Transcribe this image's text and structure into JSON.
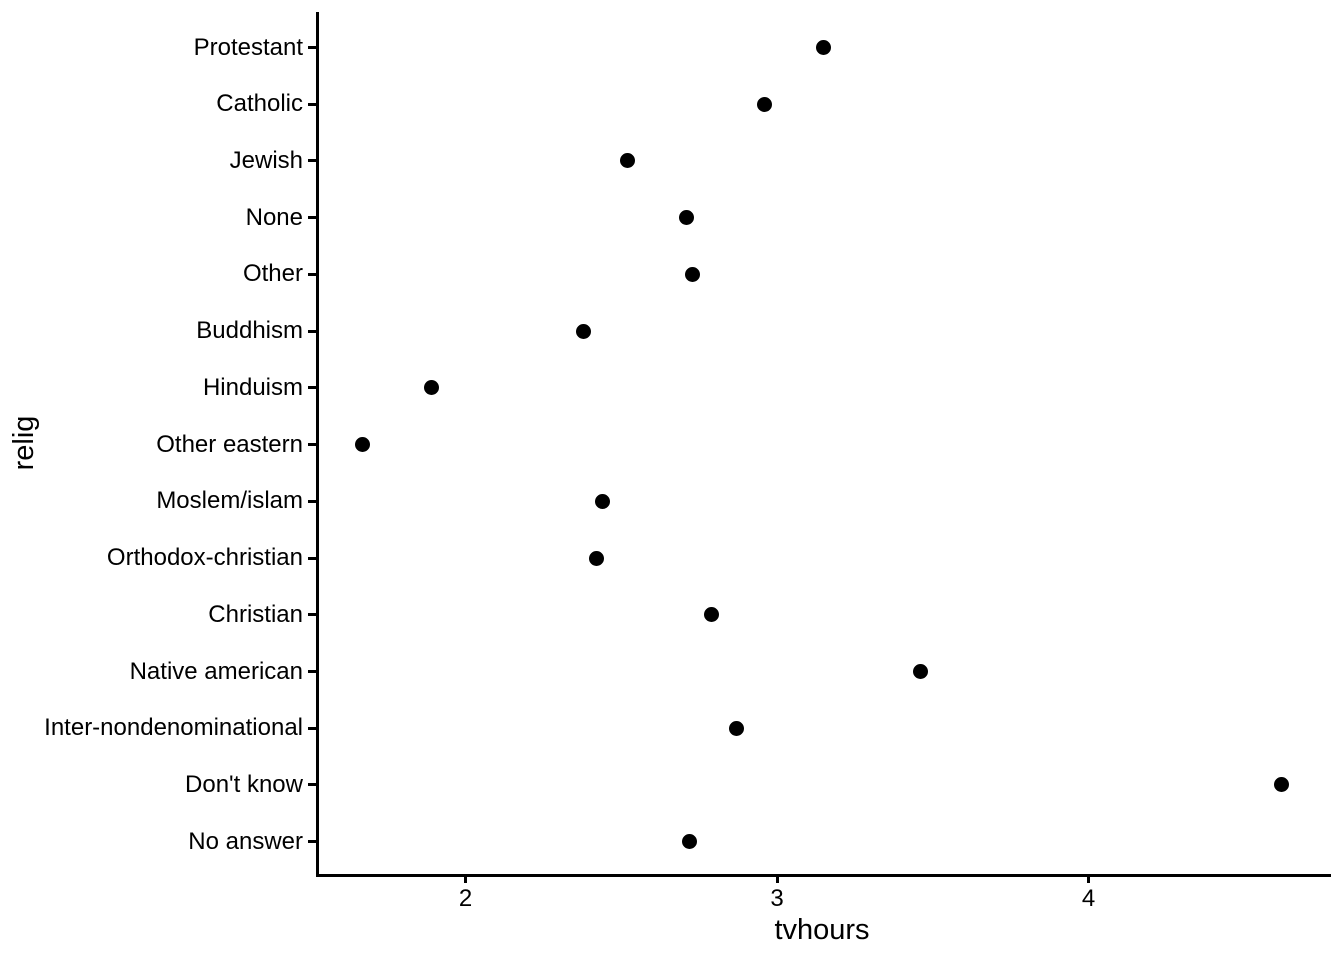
{
  "chart_data": {
    "type": "scatter",
    "variant": "cleveland-dot-plot",
    "orientation": "horizontal",
    "title": "",
    "xlabel": "tvhours",
    "ylabel": "relig",
    "categories": [
      "Protestant",
      "Catholic",
      "Jewish",
      "None",
      "Other",
      "Buddhism",
      "Hinduism",
      "Other eastern",
      "Moslem/islam",
      "Orthodox-christian",
      "Christian",
      "Native american",
      "Inter-nondenominational",
      "Don't know",
      "No answer"
    ],
    "values": [
      3.15,
      2.96,
      2.52,
      2.71,
      2.73,
      2.38,
      1.89,
      1.67,
      2.44,
      2.42,
      2.79,
      3.46,
      2.87,
      4.62,
      2.72
    ],
    "x_ticks": [
      2,
      3,
      4
    ],
    "xlim": [
      1.52,
      4.77
    ],
    "grid": false,
    "legend": false,
    "point_color": "#000000",
    "axis_color": "#000000",
    "text_color": "#000000",
    "background": "#ffffff"
  }
}
